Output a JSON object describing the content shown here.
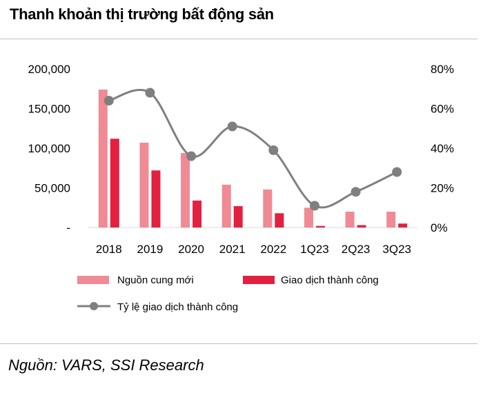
{
  "header": {
    "title": "Thanh khoản thị trường bất động sản"
  },
  "footer": {
    "source": "Nguồn: VARS, SSI Research"
  },
  "chart_data": {
    "type": "bar",
    "title": "Thanh khoản thị trường bất động sản",
    "categories": [
      "2018",
      "2019",
      "2020",
      "2021",
      "2022",
      "1Q23",
      "2Q23",
      "3Q23"
    ],
    "series": [
      {
        "name": "Nguồn cung mới",
        "kind": "bar",
        "axis": "left",
        "color": "#f08a94",
        "values": [
          174000,
          107000,
          94000,
          54000,
          48000,
          25000,
          20000,
          20000
        ]
      },
      {
        "name": "Giao dịch thành công",
        "kind": "bar",
        "axis": "left",
        "color": "#e3203f",
        "values": [
          112000,
          72000,
          34000,
          27000,
          18000,
          2000,
          3000,
          5000
        ]
      },
      {
        "name": "Tỷ lệ giao dịch thành công",
        "kind": "line",
        "axis": "right",
        "color": "#7f7f7f",
        "values": [
          0.64,
          0.68,
          0.36,
          0.51,
          0.39,
          0.11,
          0.18,
          0.28
        ]
      }
    ],
    "y_left": {
      "min": 0,
      "max": 200000,
      "ticks": [
        0,
        50000,
        100000,
        150000,
        200000
      ],
      "tick_labels": [
        "-",
        "50,000",
        "100,000",
        "150,000",
        "200,000"
      ]
    },
    "y_right": {
      "min": 0,
      "max": 0.8,
      "ticks": [
        0,
        0.2,
        0.4,
        0.6,
        0.8
      ],
      "tick_labels": [
        "0%",
        "20%",
        "40%",
        "60%",
        "80%"
      ]
    },
    "legend_position": "bottom",
    "grid": false
  }
}
